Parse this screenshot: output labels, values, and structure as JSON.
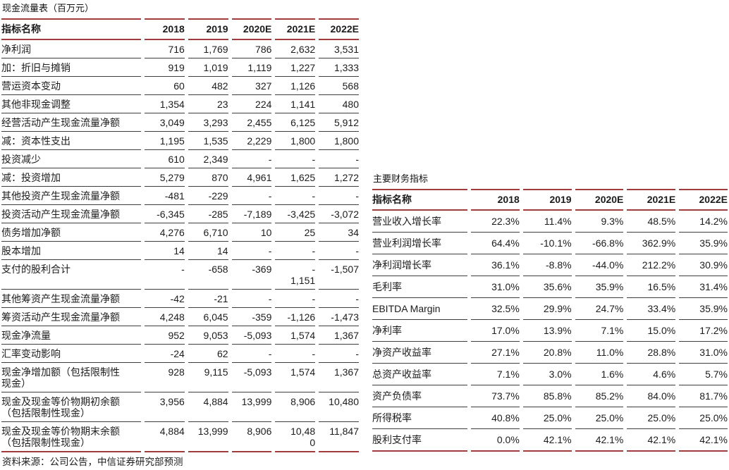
{
  "left_table": {
    "title": "现金流量表（百万元）",
    "header": [
      "指标名称",
      "2018",
      "2019",
      "2020E",
      "2021E",
      "2022E"
    ],
    "rows": [
      [
        "净利润",
        "716",
        "1,769",
        "786",
        "2,632",
        "3,531"
      ],
      [
        "加：折旧与摊销",
        "919",
        "1,019",
        "1,119",
        "1,227",
        "1,333"
      ],
      [
        "营运资本变动",
        "60",
        "482",
        "327",
        "1,126",
        "568"
      ],
      [
        "其他非现金调整",
        "1,354",
        "23",
        "224",
        "1,141",
        "480"
      ],
      [
        "经营活动产生现金流量净额",
        "3,049",
        "3,293",
        "2,455",
        "6,125",
        "5,912"
      ],
      [
        "减：资本性支出",
        "1,195",
        "1,535",
        "2,229",
        "1,800",
        "1,800"
      ],
      [
        "投资减少",
        "610",
        "2,349",
        "-",
        "-",
        "-"
      ],
      [
        "减：投资增加",
        "5,279",
        "870",
        "4,961",
        "1,625",
        "1,272"
      ],
      [
        "其他投资产生现金流量净额",
        "-481",
        "-229",
        "-",
        "-",
        "-"
      ],
      [
        "投资活动产生现金流量净额",
        "-6,345",
        "-285",
        "-7,189",
        "-3,425",
        "-3,072"
      ],
      [
        "债务增加净额",
        "4,276",
        "6,710",
        "10",
        "25",
        "34"
      ],
      [
        "股本增加",
        "14",
        "14",
        "-",
        "-",
        "-"
      ],
      [
        "支付的股利合计",
        "-",
        "-658",
        "-369",
        "-\n1,151",
        "-1,507"
      ],
      [
        "其他筹资产生现金流量净额",
        "-42",
        "-21",
        "-",
        "-",
        "-"
      ],
      [
        "筹资活动产生现金流量净额",
        "4,248",
        "6,045",
        "-359",
        "-1,126",
        "-1,473"
      ],
      [
        "现金净流量",
        "952",
        "9,053",
        "-5,093",
        "1,574",
        "1,367"
      ],
      [
        "汇率变动影响",
        "-24",
        "62",
        "-",
        "-",
        "-"
      ],
      [
        "现金净增加额（包括限制性\n现金）",
        "928",
        "9,115",
        "-5,093",
        "1,574",
        "1,367"
      ],
      [
        "现金及现金等价物期初余额\n（包括限制性现金）",
        "3,956",
        "4,884",
        "13,999",
        "8,906",
        "10,480"
      ],
      [
        "现金及现金等价物期末余额\n（包括限制性现金）",
        "4,884",
        "13,999",
        "8,906",
        "10,48\n0",
        "11,847"
      ]
    ],
    "source_note": "资料来源：公司公告，中信证券研究部预测"
  },
  "right_table": {
    "title": "主要财务指标",
    "header": [
      "指标名称",
      "2018",
      "2019",
      "2020E",
      "2021E",
      "2022E"
    ],
    "rows": [
      [
        "营业收入增长率",
        "22.3%",
        "11.4%",
        "9.3%",
        "48.5%",
        "14.2%"
      ],
      [
        "营业利润增长率",
        "64.4%",
        "-10.1%",
        "-66.8%",
        "362.9%",
        "35.9%"
      ],
      [
        "净利润增长率",
        "36.1%",
        "-8.8%",
        "-44.0%",
        "212.2%",
        "30.9%"
      ],
      [
        "毛利率",
        "31.0%",
        "35.6%",
        "35.9%",
        "16.5%",
        "31.4%"
      ],
      [
        "EBITDA Margin",
        "32.5%",
        "29.9%",
        "24.7%",
        "33.4%",
        "35.9%"
      ],
      [
        "净利率",
        "17.0%",
        "13.9%",
        "7.1%",
        "15.0%",
        "17.2%"
      ],
      [
        "净资产收益率",
        "27.1%",
        "20.8%",
        "11.0%",
        "28.8%",
        "31.0%"
      ],
      [
        "总资产收益率",
        "7.1%",
        "3.0%",
        "1.6%",
        "4.6%",
        "5.7%"
      ],
      [
        "资产负债率",
        "73.7%",
        "85.8%",
        "85.2%",
        "84.0%",
        "81.7%"
      ],
      [
        "所得税率",
        "40.8%",
        "25.0%",
        "25.0%",
        "25.0%",
        "25.0%"
      ],
      [
        "股利支付率",
        "0.0%",
        "42.1%",
        "42.1%",
        "42.1%",
        "42.1%"
      ]
    ]
  },
  "colors": {
    "rule_red": "#a03c3c",
    "row_line": "#3d3d3d",
    "text": "#1c1c1c"
  }
}
